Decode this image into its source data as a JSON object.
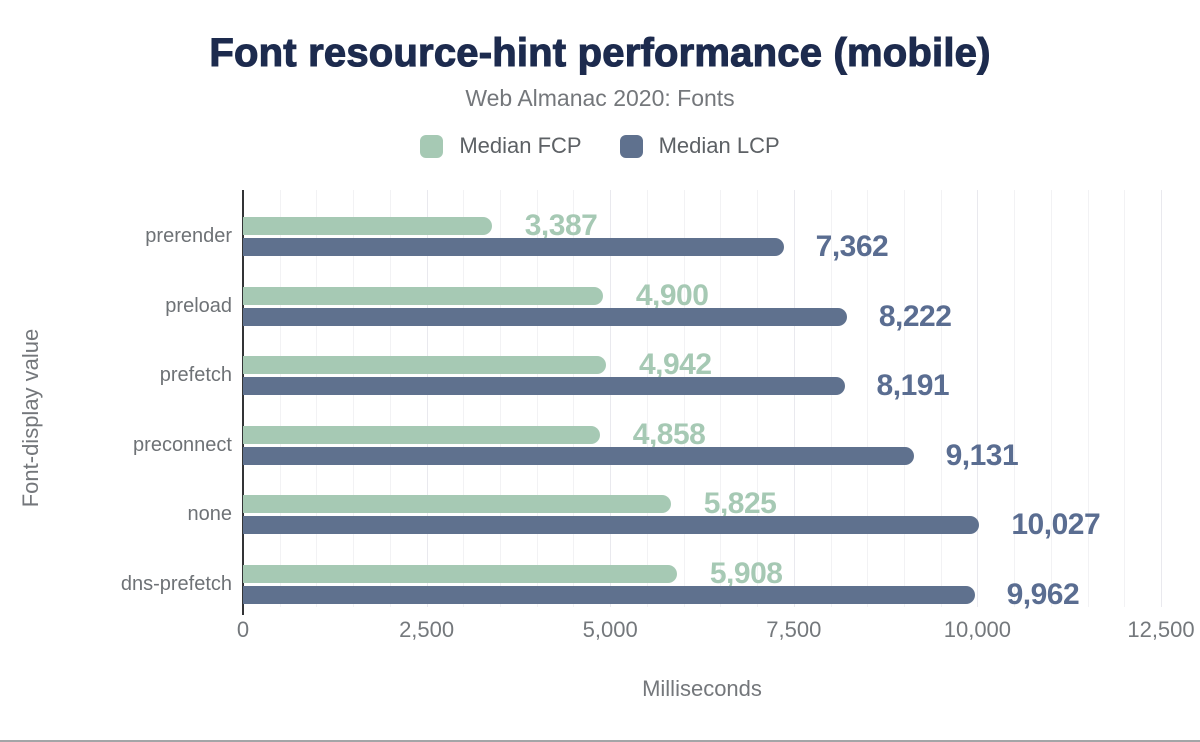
{
  "title": "Font resource-hint performance (mobile)",
  "subtitle": "Web Almanac 2020: Fonts",
  "legend": [
    {
      "label": "Median FCP",
      "color": "#a6c9b4"
    },
    {
      "label": "Median LCP",
      "color": "#5f718e"
    }
  ],
  "colors": {
    "title": "#1d2b4e",
    "subtitle_gray": "#74777b",
    "axis_line": "#333436",
    "grid_minor": "#f2f2f4",
    "grid_major": "#e9e9ee",
    "category_gray": "#6e7276",
    "tick_gray": "#74787c",
    "fcp": "#a6c9b4",
    "lcp": "#5f718e",
    "fcp_value_label": "#a6c9b4",
    "lcp_value_label": "#5a6d91"
  },
  "chart_data": {
    "type": "bar",
    "orientation": "horizontal",
    "title": "Font resource-hint performance (mobile)",
    "subtitle": "Web Almanac 2020: Fonts",
    "categories": [
      "prerender",
      "preload",
      "prefetch",
      "preconnect",
      "none",
      "dns-prefetch"
    ],
    "series": [
      {
        "name": "Median FCP",
        "color": "#a6c9b4",
        "label_color": "#a6c9b4",
        "values": [
          3387,
          4900,
          4942,
          4858,
          5825,
          5908
        ],
        "labels": [
          "3,387",
          "4,900",
          "4,942",
          "4,858",
          "5,825",
          "5,908"
        ]
      },
      {
        "name": "Median LCP",
        "color": "#5f718e",
        "label_color": "#5a6d91",
        "values": [
          7362,
          8222,
          8191,
          9131,
          10027,
          9962
        ],
        "labels": [
          "7,362",
          "8,222",
          "8,191",
          "9,131",
          "10,027",
          "9,962"
        ]
      }
    ],
    "xlabel": "Milliseconds",
    "ylabel": "Font-display value",
    "xlim": [
      0,
      12500
    ],
    "xticks": [
      0,
      2500,
      5000,
      7500,
      10000,
      12500
    ],
    "xtick_labels": [
      "0",
      "2,500",
      "5,000",
      "7,500",
      "10,000",
      "12,500"
    ],
    "minor_grid_step": 500,
    "major_grid_step": 2500,
    "grid": true,
    "legend_position": "top",
    "data_labels": true
  }
}
